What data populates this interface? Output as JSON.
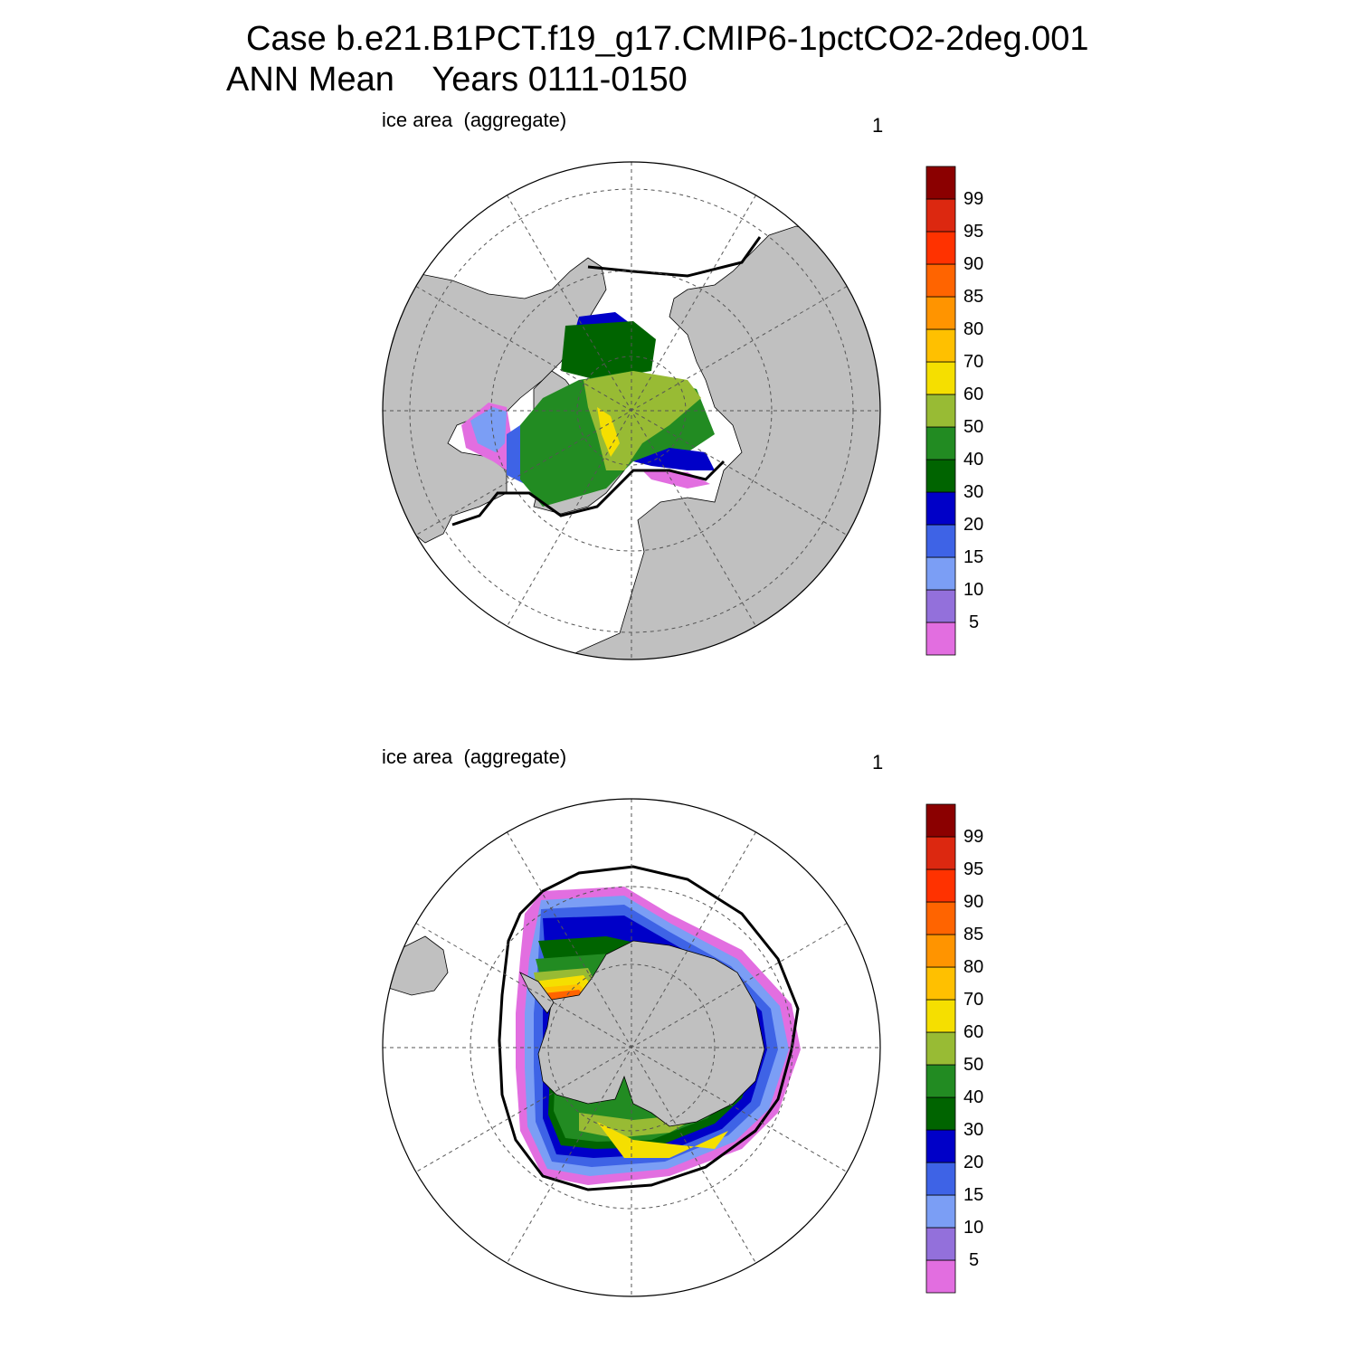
{
  "title": {
    "line1": "Case b.e21.B1PCT.f19_g17.CMIP6-1pctCO2-2deg.001",
    "line2": "ANN Mean    Years 0111-0150"
  },
  "panels": [
    {
      "id": "north",
      "hemisphere": "Northern Hemisphere polar view",
      "label_left": "ice area  (aggregate)",
      "label_right": "1"
    },
    {
      "id": "south",
      "hemisphere": "Southern Hemisphere polar view",
      "label_left": "ice area  (aggregate)",
      "label_right": "1"
    }
  ],
  "colorbar": {
    "levels": [
      "5",
      "10",
      "15",
      "20",
      "30",
      "40",
      "50",
      "60",
      "70",
      "80",
      "85",
      "90",
      "95",
      "99"
    ],
    "colors": [
      "#e26ee0",
      "#9370db",
      "#7b9ef5",
      "#3e63e6",
      "#0000c8",
      "#006400",
      "#228b22",
      "#98bb34",
      "#f5df00",
      "#ffc000",
      "#ff9400",
      "#ff6400",
      "#ff3200",
      "#dc2810",
      "#8b0000"
    ]
  },
  "map_colors": {
    "land": "#c0c0c0",
    "ocean": "#ffffff",
    "grid": "#555555",
    "outline": "#000000"
  }
}
